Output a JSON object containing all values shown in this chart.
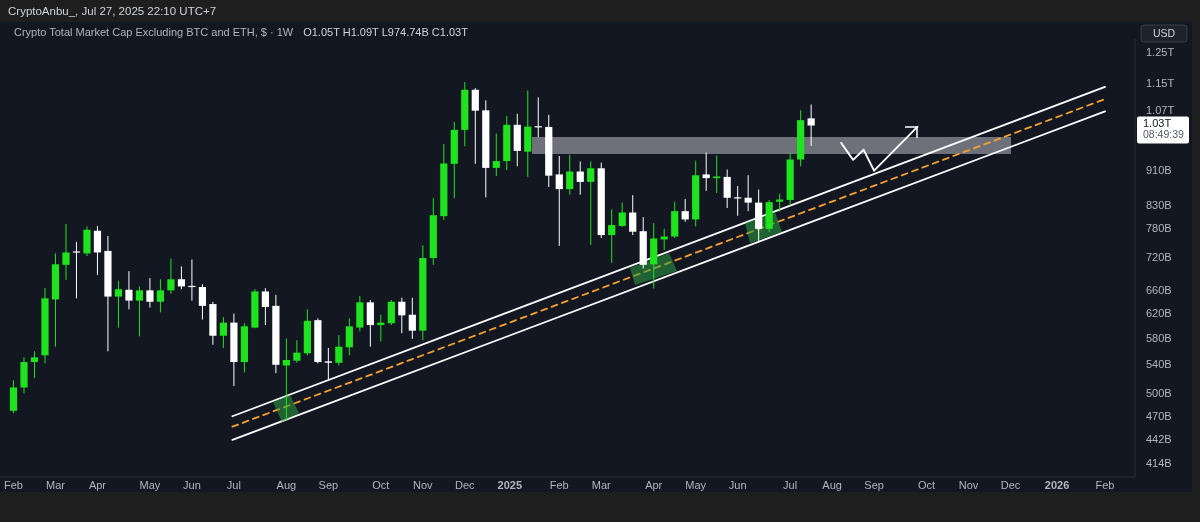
{
  "chart_data": {
    "type": "candlestick",
    "title": "Crypto Total Market Cap Excluding BTC and ETH, $ · 1W",
    "subtitle": "O1.05T  H1.09T  L974.74B  C1.03T",
    "annotations": [
      "CryptoAnbu_, Jul 27, 2025 22:10 UTC+7",
      "1.03T",
      "08:49:39",
      "USD"
    ],
    "log": true,
    "xlim": [
      "2024-01-27",
      "2026-02-22"
    ],
    "ylim": [
      400000000000.0,
      1300000000000.0
    ],
    "yticks": [
      {
        "value": 1250000000000.0,
        "label": "1.25T"
      },
      {
        "value": 1150000000000.0,
        "label": "1.15T"
      },
      {
        "value": 1070000000000.0,
        "label": "1.07T"
      },
      {
        "value": 910000000000.0,
        "label": "910B"
      },
      {
        "value": 830000000000.0,
        "label": "830B"
      },
      {
        "value": 780000000000.0,
        "label": "780B"
      },
      {
        "value": 720000000000.0,
        "label": "720B"
      },
      {
        "value": 660000000000.0,
        "label": "660B"
      },
      {
        "value": 620000000000.0,
        "label": "620B"
      },
      {
        "value": 580000000000.0,
        "label": "580B"
      },
      {
        "value": 540000000000.0,
        "label": "540B"
      },
      {
        "value": 500000000000.0,
        "label": "500B"
      },
      {
        "value": 470000000000.0,
        "label": "470B"
      },
      {
        "value": 442000000000.0,
        "label": "442B"
      },
      {
        "value": 414000000000.0,
        "label": "414B"
      }
    ],
    "xticks": [
      {
        "value": "2024-02-05",
        "label": "Feb"
      },
      {
        "value": "2024-03-04",
        "label": "Mar"
      },
      {
        "value": "2024-04-01",
        "label": "Apr"
      },
      {
        "value": "2024-05-06",
        "label": "May"
      },
      {
        "value": "2024-06-03",
        "label": "Jun"
      },
      {
        "value": "2024-07-01",
        "label": "Jul"
      },
      {
        "value": "2024-08-05",
        "label": "Aug"
      },
      {
        "value": "2024-09-02",
        "label": "Sep"
      },
      {
        "value": "2024-10-07",
        "label": "Oct"
      },
      {
        "value": "2024-11-04",
        "label": "Nov"
      },
      {
        "value": "2024-12-02",
        "label": "Dec"
      },
      {
        "value": "2025",
        "label": "2025"
      },
      {
        "value": "2025-02-03",
        "label": "Feb"
      },
      {
        "value": "2025-03-03",
        "label": "Mar"
      },
      {
        "value": "2025-04-07",
        "label": "Apr"
      },
      {
        "value": "2025-05-05",
        "label": "May"
      },
      {
        "value": "2025-06-02",
        "label": "Jun"
      },
      {
        "value": "2025-07-07",
        "label": "Jul"
      },
      {
        "value": "2025-08-04",
        "label": "Aug"
      },
      {
        "value": "2025-09-01",
        "label": "Sep"
      },
      {
        "value": "2025-10-06",
        "label": "Oct"
      },
      {
        "value": "2025-11-03",
        "label": "Nov"
      },
      {
        "value": "2025-12-01",
        "label": "Dec"
      },
      {
        "value": "2026",
        "label": "2026"
      },
      {
        "value": "2026-02-02",
        "label": "Feb"
      }
    ],
    "x": [
      "2024-02-05",
      "2024-02-12",
      "2024-02-19",
      "2024-02-26",
      "2024-03-04",
      "2024-03-11",
      "2024-03-18",
      "2024-03-25",
      "2024-04-01",
      "2024-04-08",
      "2024-04-15",
      "2024-04-22",
      "2024-04-29",
      "2024-05-06",
      "2024-05-13",
      "2024-05-20",
      "2024-05-27",
      "2024-06-03",
      "2024-06-10",
      "2024-06-17",
      "2024-06-24",
      "2024-07-01",
      "2024-07-08",
      "2024-07-15",
      "2024-07-22",
      "2024-07-29",
      "2024-08-05",
      "2024-08-12",
      "2024-08-19",
      "2024-08-26",
      "2024-09-02",
      "2024-09-09",
      "2024-09-16",
      "2024-09-23",
      "2024-09-30",
      "2024-10-07",
      "2024-10-14",
      "2024-10-21",
      "2024-10-28",
      "2024-11-04",
      "2024-11-11",
      "2024-11-18",
      "2024-11-25",
      "2024-12-02",
      "2024-12-09",
      "2024-12-16",
      "2024-12-23",
      "2024-12-30",
      "2025-01-06",
      "2025-01-13",
      "2025-01-20",
      "2025-01-27",
      "2025-02-03",
      "2025-02-10",
      "2025-02-17",
      "2025-02-24",
      "2025-03-03",
      "2025-03-10",
      "2025-03-17",
      "2025-03-24",
      "2025-03-31",
      "2025-04-07",
      "2025-04-14",
      "2025-04-21",
      "2025-04-28",
      "2025-05-05",
      "2025-05-12",
      "2025-05-19",
      "2025-05-26",
      "2025-06-02",
      "2025-06-09",
      "2025-06-16",
      "2025-06-23",
      "2025-06-30",
      "2025-07-07",
      "2025-07-14",
      "2025-07-21"
    ],
    "ohlc": [
      [
        478000000000.0,
        519000000000.0,
        475000000000.0,
        509000000000.0
      ],
      [
        509000000000.0,
        552000000000.0,
        501000000000.0,
        545000000000.0
      ],
      [
        545000000000.0,
        561000000000.0,
        522000000000.0,
        552000000000.0
      ],
      [
        555000000000.0,
        665000000000.0,
        543000000000.0,
        647000000000.0
      ],
      [
        645000000000.0,
        730000000000.0,
        568000000000.0,
        709000000000.0
      ],
      [
        708000000000.0,
        790000000000.0,
        680000000000.0,
        732000000000.0
      ],
      [
        734000000000.0,
        753000000000.0,
        647000000000.0,
        732000000000.0
      ],
      [
        730000000000.0,
        785000000000.0,
        725000000000.0,
        778000000000.0
      ],
      [
        776000000000.0,
        786000000000.0,
        689000000000.0,
        732000000000.0
      ],
      [
        735000000000.0,
        765000000000.0,
        561000000000.0,
        650000000000.0
      ],
      [
        650000000000.0,
        678000000000.0,
        598000000000.0,
        663000000000.0
      ],
      [
        662000000000.0,
        696000000000.0,
        628000000000.0,
        643000000000.0
      ],
      [
        643000000000.0,
        668000000000.0,
        584000000000.0,
        661000000000.0
      ],
      [
        661000000000.0,
        683000000000.0,
        631000000000.0,
        641000000000.0
      ],
      [
        641000000000.0,
        681000000000.0,
        623000000000.0,
        661000000000.0
      ],
      [
        661000000000.0,
        720000000000.0,
        655000000000.0,
        681000000000.0
      ],
      [
        681000000000.0,
        705000000000.0,
        663000000000.0,
        668000000000.0
      ],
      [
        669000000000.0,
        718000000000.0,
        643000000000.0,
        667000000000.0
      ],
      [
        667000000000.0,
        672000000000.0,
        611000000000.0,
        634000000000.0
      ],
      [
        637000000000.0,
        641000000000.0,
        571000000000.0,
        585000000000.0
      ],
      [
        585000000000.0,
        615000000000.0,
        566000000000.0,
        606000000000.0
      ],
      [
        606000000000.0,
        621000000000.0,
        511000000000.0,
        545000000000.0
      ],
      [
        545000000000.0,
        605000000000.0,
        530000000000.0,
        600000000000.0
      ],
      [
        598000000000.0,
        663000000000.0,
        597000000000.0,
        659000000000.0
      ],
      [
        659000000000.0,
        665000000000.0,
        602000000000.0,
        632000000000.0
      ],
      [
        634000000000.0,
        653000000000.0,
        529000000000.0,
        541000000000.0
      ],
      [
        540000000000.0,
        581000000000.0,
        466000000000.0,
        548000000000.0
      ],
      [
        547000000000.0,
        578000000000.0,
        544000000000.0,
        559000000000.0
      ],
      [
        558000000000.0,
        628000000000.0,
        555000000000.0,
        609000000000.0
      ],
      [
        610000000000.0,
        613000000000.0,
        543000000000.0,
        545000000000.0
      ],
      [
        546000000000.0,
        566000000000.0,
        520000000000.0,
        544000000000.0
      ],
      [
        544000000000.0,
        586000000000.0,
        540000000000.0,
        568000000000.0
      ],
      [
        567000000000.0,
        613000000000.0,
        555000000000.0,
        600000000000.0
      ],
      [
        598000000000.0,
        651000000000.0,
        592000000000.0,
        640000000000.0
      ],
      [
        640000000000.0,
        644000000000.0,
        568000000000.0,
        602000000000.0
      ],
      [
        602000000000.0,
        619000000000.0,
        576000000000.0,
        606000000000.0
      ],
      [
        605000000000.0,
        644000000000.0,
        602000000000.0,
        641000000000.0
      ],
      [
        641000000000.0,
        648000000000.0,
        589000000000.0,
        618000000000.0
      ],
      [
        619000000000.0,
        648000000000.0,
        580000000000.0,
        593000000000.0
      ],
      [
        593000000000.0,
        746000000000.0,
        578000000000.0,
        721000000000.0
      ],
      [
        721000000000.0,
        847000000000.0,
        708000000000.0,
        809000000000.0
      ],
      [
        807000000000.0,
        980000000000.0,
        799000000000.0,
        930000000000.0
      ],
      [
        929000000000.0,
        1040000000000.0,
        847000000000.0,
        1018000000000.0
      ],
      [
        1018000000000.0,
        1158000000000.0,
        974000000000.0,
        1134000000000.0
      ],
      [
        1134000000000.0,
        1139000000000.0,
        929000000000.0,
        1072000000000.0
      ],
      [
        1073000000000.0,
        1102000000000.0,
        849000000000.0,
        919000000000.0
      ],
      [
        919000000000.0,
        1008000000000.0,
        899000000000.0,
        936000000000.0
      ],
      [
        936000000000.0,
        1057000000000.0,
        914000000000.0,
        1032000000000.0
      ],
      [
        1032000000000.0,
        1063000000000.0,
        923000000000.0,
        962000000000.0
      ],
      [
        960000000000.0,
        1132000000000.0,
        897000000000.0,
        1027000000000.0
      ],
      [
        1028000000000.0,
        1111000000000.0,
        998000000000.0,
        1026000000000.0
      ],
      [
        1026000000000.0,
        1060000000000.0,
        873000000000.0,
        900000000000.0
      ],
      [
        903000000000.0,
        949000000000.0,
        745000000000.0,
        868000000000.0
      ],
      [
        868000000000.0,
        952000000000.0,
        855000000000.0,
        910000000000.0
      ],
      [
        910000000000.0,
        935000000000.0,
        855000000000.0,
        885000000000.0
      ],
      [
        885000000000.0,
        935000000000.0,
        747000000000.0,
        918000000000.0
      ],
      [
        918000000000.0,
        932000000000.0,
        761000000000.0,
        767000000000.0
      ],
      [
        767000000000.0,
        822000000000.0,
        712000000000.0,
        788000000000.0
      ],
      [
        786000000000.0,
        837000000000.0,
        784000000000.0,
        815000000000.0
      ],
      [
        815000000000.0,
        854000000000.0,
        767000000000.0,
        774000000000.0
      ],
      [
        775000000000.0,
        805000000000.0,
        701000000000.0,
        708000000000.0
      ],
      [
        709000000000.0,
        792000000000.0,
        664000000000.0,
        760000000000.0
      ],
      [
        758000000000.0,
        780000000000.0,
        737000000000.0,
        764000000000.0
      ],
      [
        764000000000.0,
        839000000000.0,
        761000000000.0,
        818000000000.0
      ],
      [
        818000000000.0,
        845000000000.0,
        795000000000.0,
        800000000000.0
      ],
      [
        800000000000.0,
        937000000000.0,
        785000000000.0,
        901000000000.0
      ],
      [
        903000000000.0,
        958000000000.0,
        864000000000.0,
        894000000000.0
      ],
      [
        894000000000.0,
        950000000000.0,
        859000000000.0,
        898000000000.0
      ],
      [
        897000000000.0,
        915000000000.0,
        825000000000.0,
        848000000000.0
      ],
      [
        849000000000.0,
        875000000000.0,
        808000000000.0,
        847000000000.0
      ],
      [
        848000000000.0,
        901000000000.0,
        818000000000.0,
        837000000000.0
      ],
      [
        837000000000.0,
        867000000000.0,
        753000000000.0,
        780000000000.0
      ],
      [
        780000000000.0,
        843000000000.0,
        773000000000.0,
        838000000000.0
      ],
      [
        839000000000.0,
        857000000000.0,
        817000000000.0,
        844000000000.0
      ],
      [
        843000000000.0,
        958000000000.0,
        830000000000.0,
        940000000000.0
      ],
      [
        940000000000.0,
        1073000000000.0,
        923000000000.0,
        1045000000000.0
      ],
      [
        1050000000000.0,
        1090000000000.0,
        974740000000.0,
        1030000000000.0
      ]
    ],
    "colors": [
      "#1fe31f",
      "#1fe31f",
      "#1fe31f",
      "#1fe31f",
      "#1fe31f",
      "#1fe31f",
      "#ffffff",
      "#1fe31f",
      "#ffffff",
      "#ffffff",
      "#1fe31f",
      "#ffffff",
      "#1fe31f",
      "#ffffff",
      "#1fe31f",
      "#1fe31f",
      "#ffffff",
      "#ffffff",
      "#ffffff",
      "#ffffff",
      "#1fe31f",
      "#ffffff",
      "#1fe31f",
      "#1fe31f",
      "#ffffff",
      "#ffffff",
      "#1fe31f",
      "#1fe31f",
      "#1fe31f",
      "#ffffff",
      "#ffffff",
      "#1fe31f",
      "#1fe31f",
      "#1fe31f",
      "#ffffff",
      "#1fe31f",
      "#1fe31f",
      "#ffffff",
      "#ffffff",
      "#1fe31f",
      "#1fe31f",
      "#1fe31f",
      "#1fe31f",
      "#1fe31f",
      "#ffffff",
      "#ffffff",
      "#1fe31f",
      "#1fe31f",
      "#ffffff",
      "#1fe31f",
      "#ffffff",
      "#ffffff",
      "#ffffff",
      "#1fe31f",
      "#ffffff",
      "#1fe31f",
      "#ffffff",
      "#1fe31f",
      "#1fe31f",
      "#ffffff",
      "#ffffff",
      "#1fe31f",
      "#1fe31f",
      "#1fe31f",
      "#ffffff",
      "#1fe31f",
      "#ffffff",
      "#1fe31f",
      "#ffffff",
      "#ffffff",
      "#ffffff",
      "#ffffff",
      "#1fe31f",
      "#1fe31f",
      "#1fe31f",
      "#1fe31f",
      "#ffffff"
    ],
    "series": [
      {
        "type": "line",
        "x": [
          "2024-06-30",
          "2026-02-02"
        ],
        "values": [
          471000000000.0,
          1143000000000.0
        ],
        "color": "#ffffff",
        "line_style": "solid"
      },
      {
        "type": "line",
        "x": [
          "2024-06-30",
          "2026-02-02"
        ],
        "values": [
          458000000000.0,
          1106000000000.0
        ],
        "color": "#f5a030",
        "line_style": "dashed"
      },
      {
        "type": "line",
        "x": [
          "2024-06-30",
          "2026-02-02"
        ],
        "values": [
          442000000000.0,
          1070000000000.0
        ],
        "color": "#ffffff",
        "line_style": "solid"
      },
      {
        "type": "line",
        "x": [
          "2025-08-10",
          "2025-08-18",
          "2025-08-25",
          "2025-09-01",
          "2025-09-30"
        ],
        "values": [
          983000000000.0,
          939000000000.0,
          965000000000.0,
          912000000000.0,
          1027000000000.0
        ],
        "color": "#ffffff",
        "line_style": "solid"
      }
    ]
  }
}
